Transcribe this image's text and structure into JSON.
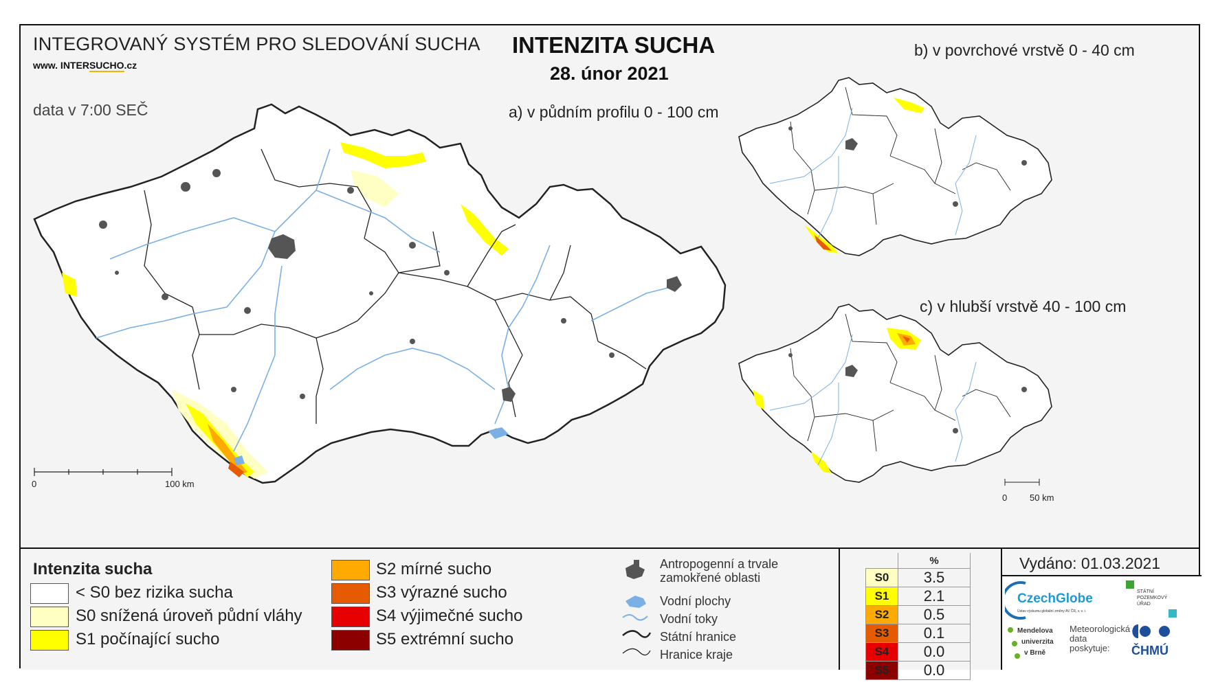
{
  "header": {
    "system_title": "INTEGROVANÝ SYSTÉM PRO SLEDOVÁNÍ SUCHA",
    "website_prefix": "www. INTER",
    "website_highlight": "SUCHO",
    "website_suffix": ".cz",
    "data_time": "data v 7:00 SEČ",
    "main_title": "INTENZITA SUCHA",
    "date": "28. únor 2021"
  },
  "maps": {
    "a_label": "a) v půdním profilu 0 - 100 cm",
    "b_label": "b) v povrchové vrstvě 0 - 40 cm",
    "c_label": "c) v hlubší vrstvě 40 - 100 cm",
    "scale_main": {
      "start": "0",
      "end": "100 km"
    },
    "scale_small": {
      "start": "0",
      "end": "50 km"
    }
  },
  "legend": {
    "title": "Intenzita sucha",
    "classes": [
      {
        "label": "< S0 bez rizika sucha",
        "color": "#ffffff"
      },
      {
        "label": "S0 snížená úroveň půdní vláhy",
        "color": "#ffffc4"
      },
      {
        "label": "S1 počínající sucho",
        "color": "#ffff00"
      },
      {
        "label": "S2 mírné sucho",
        "color": "#ffaa00"
      },
      {
        "label": "S3 výrazné sucho",
        "color": "#e65a00"
      },
      {
        "label": "S4 výjimečné sucho",
        "color": "#e60000"
      },
      {
        "label": "S5 extrémní sucho",
        "color": "#8c0000"
      }
    ],
    "symbols": [
      {
        "label": "Antropogenní a trvale\nzamokřené oblasti",
        "icon": "urban-area-icon"
      },
      {
        "label": "Vodní plochy",
        "icon": "water-body-icon"
      },
      {
        "label": "Vodní toky",
        "icon": "river-icon"
      },
      {
        "label": "Státní hranice",
        "icon": "state-border-icon"
      },
      {
        "label": "Hranice kraje",
        "icon": "region-border-icon"
      }
    ]
  },
  "percent_table": {
    "header": "%",
    "rows": [
      {
        "code": "S0",
        "value": "3.5",
        "color": "#ffffc4",
        "text_color": "#000000"
      },
      {
        "code": "S1",
        "value": "2.1",
        "color": "#ffff00",
        "text_color": "#000000"
      },
      {
        "code": "S2",
        "value": "0.5",
        "color": "#ffaa00",
        "text_color": "#000000"
      },
      {
        "code": "S3",
        "value": "0.1",
        "color": "#e65a00",
        "text_color": "#000000"
      },
      {
        "code": "S4",
        "value": "0.0",
        "color": "#e60000",
        "text_color": "#000000"
      },
      {
        "code": "S5",
        "value": "0.0",
        "color": "#8c0000",
        "text_color": "#000000"
      }
    ]
  },
  "issued": "Vydáno: 01.03.2021",
  "logos": {
    "czechglobe": "CzechGlobe",
    "czechglobe_sub": "Ústav výzkumu globální změny AV ČR, v. v. i.",
    "spu_line1": "STÁTNÍ",
    "spu_line2": "POZEMKOVÝ",
    "spu_line3": "ÚŘAD",
    "mendel_line1": "Mendelova",
    "mendel_line2": "univerzita",
    "mendel_line3": "v Brně",
    "meteo_line1": "Meteorologická",
    "meteo_line2": "data",
    "meteo_line3": "poskytuje:",
    "chmu": "ČHMÚ"
  }
}
